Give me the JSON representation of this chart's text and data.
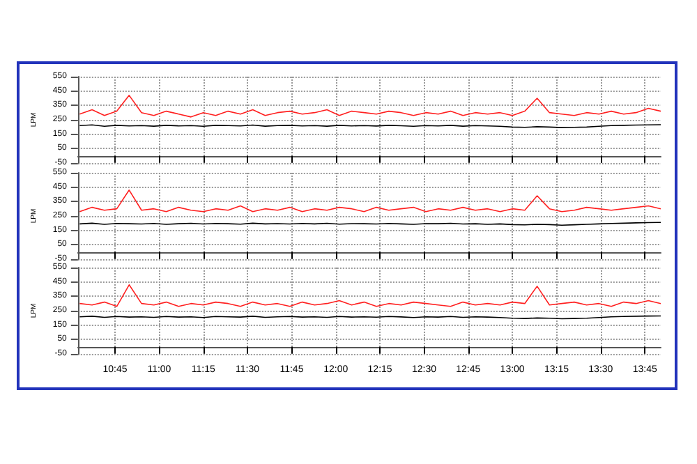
{
  "chart_data": [
    {
      "type": "line",
      "ylabel": "LPM",
      "x": [
        10.55,
        10.62,
        10.69,
        10.76,
        10.83,
        10.9,
        10.97,
        11.04,
        11.11,
        11.18,
        11.25,
        11.32,
        11.39,
        11.46,
        11.53,
        11.6,
        11.67,
        11.74,
        11.81,
        11.88,
        11.95,
        12.02,
        12.09,
        12.16,
        12.23,
        12.3,
        12.37,
        12.44,
        12.51,
        12.58,
        12.65,
        12.72,
        12.79,
        12.86,
        12.93,
        13.0,
        13.07,
        13.14,
        13.21,
        13.28,
        13.35,
        13.42,
        13.49,
        13.56,
        13.63,
        13.7,
        13.77,
        13.84
      ],
      "series": [
        {
          "color": "#ff2020",
          "values": [
            290,
            320,
            280,
            310,
            420,
            300,
            280,
            310,
            290,
            270,
            300,
            280,
            310,
            290,
            320,
            280,
            300,
            310,
            290,
            300,
            320,
            280,
            310,
            300,
            290,
            310,
            300,
            280,
            300,
            290,
            310,
            280,
            300,
            290,
            300,
            280,
            310,
            400,
            300,
            290,
            280,
            300,
            290,
            310,
            290,
            300,
            330,
            310
          ]
        },
        {
          "color": "#000000",
          "values": [
            210,
            215,
            205,
            212,
            208,
            210,
            206,
            212,
            208,
            210,
            205,
            212,
            210,
            208,
            214,
            206,
            210,
            212,
            208,
            210,
            206,
            212,
            208,
            210,
            207,
            212,
            209,
            205,
            210,
            208,
            212,
            206,
            210,
            208,
            205,
            200,
            198,
            202,
            200,
            196,
            198,
            200,
            205,
            210,
            212,
            214,
            215,
            216
          ]
        }
      ],
      "xlim": [
        10.54,
        13.84
      ],
      "xticks": [
        {
          "value": 10.75,
          "label": null
        },
        {
          "value": 11,
          "label": null
        },
        {
          "value": 11.25,
          "label": null
        },
        {
          "value": 11.5,
          "label": null
        },
        {
          "value": 11.75,
          "label": null
        },
        {
          "value": 12,
          "label": null
        },
        {
          "value": 12.25,
          "label": null
        },
        {
          "value": 12.5,
          "label": null
        },
        {
          "value": 12.75,
          "label": null
        },
        {
          "value": 13,
          "label": null
        },
        {
          "value": 13.25,
          "label": null
        },
        {
          "value": 13.5,
          "label": null
        },
        {
          "value": 13.75,
          "label": null
        }
      ],
      "ylim": [
        -50,
        550
      ],
      "yticks": [
        -50,
        50,
        150,
        250,
        350,
        450,
        550
      ],
      "grid": true,
      "tick_labels": "y",
      "marker": "none",
      "line_style": "solid"
    },
    {
      "type": "line",
      "ylabel": "LPM",
      "x": [
        10.55,
        10.62,
        10.69,
        10.76,
        10.83,
        10.9,
        10.97,
        11.04,
        11.11,
        11.18,
        11.25,
        11.32,
        11.39,
        11.46,
        11.53,
        11.6,
        11.67,
        11.74,
        11.81,
        11.88,
        11.95,
        12.02,
        12.09,
        12.16,
        12.23,
        12.3,
        12.37,
        12.44,
        12.51,
        12.58,
        12.65,
        12.72,
        12.79,
        12.86,
        12.93,
        13.0,
        13.07,
        13.14,
        13.21,
        13.28,
        13.35,
        13.42,
        13.49,
        13.56,
        13.63,
        13.7,
        13.77,
        13.84
      ],
      "series": [
        {
          "color": "#ff2020",
          "values": [
            280,
            310,
            290,
            300,
            430,
            290,
            300,
            280,
            310,
            290,
            280,
            300,
            290,
            320,
            280,
            300,
            290,
            310,
            280,
            300,
            290,
            310,
            300,
            280,
            310,
            290,
            300,
            310,
            280,
            300,
            290,
            310,
            290,
            300,
            280,
            300,
            290,
            390,
            300,
            280,
            290,
            310,
            300,
            290,
            300,
            310,
            320,
            300
          ]
        },
        {
          "color": "#000000",
          "values": [
            195,
            200,
            192,
            198,
            196,
            194,
            198,
            192,
            196,
            199,
            194,
            198,
            196,
            193,
            200,
            195,
            197,
            194,
            198,
            195,
            199,
            193,
            197,
            196,
            194,
            198,
            195,
            192,
            197,
            196,
            199,
            194,
            196,
            192,
            195,
            190,
            188,
            192,
            190,
            186,
            189,
            192,
            195,
            198,
            200,
            202,
            204,
            205
          ]
        }
      ],
      "xlim": [
        10.54,
        13.84
      ],
      "xticks": [
        {
          "value": 10.75,
          "label": null
        },
        {
          "value": 11,
          "label": null
        },
        {
          "value": 11.25,
          "label": null
        },
        {
          "value": 11.5,
          "label": null
        },
        {
          "value": 11.75,
          "label": null
        },
        {
          "value": 12,
          "label": null
        },
        {
          "value": 12.25,
          "label": null
        },
        {
          "value": 12.5,
          "label": null
        },
        {
          "value": 12.75,
          "label": null
        },
        {
          "value": 13,
          "label": null
        },
        {
          "value": 13.25,
          "label": null
        },
        {
          "value": 13.5,
          "label": null
        },
        {
          "value": 13.75,
          "label": null
        }
      ],
      "ylim": [
        -50,
        550
      ],
      "yticks": [
        -50,
        50,
        150,
        250,
        350,
        450,
        550
      ],
      "grid": true,
      "tick_labels": "y",
      "marker": "none",
      "line_style": "solid"
    },
    {
      "type": "line",
      "ylabel": "LPM",
      "x": [
        10.55,
        10.62,
        10.69,
        10.76,
        10.83,
        10.9,
        10.97,
        11.04,
        11.11,
        11.18,
        11.25,
        11.32,
        11.39,
        11.46,
        11.53,
        11.6,
        11.67,
        11.74,
        11.81,
        11.88,
        11.95,
        12.02,
        12.09,
        12.16,
        12.23,
        12.3,
        12.37,
        12.44,
        12.51,
        12.58,
        12.65,
        12.72,
        12.79,
        12.86,
        12.93,
        13.0,
        13.07,
        13.14,
        13.21,
        13.28,
        13.35,
        13.42,
        13.49,
        13.56,
        13.63,
        13.7,
        13.77,
        13.84
      ],
      "series": [
        {
          "color": "#ff2020",
          "values": [
            300,
            290,
            310,
            280,
            430,
            300,
            290,
            310,
            280,
            300,
            290,
            310,
            300,
            280,
            310,
            290,
            300,
            280,
            310,
            290,
            300,
            320,
            290,
            310,
            280,
            300,
            290,
            310,
            300,
            290,
            280,
            310,
            290,
            300,
            290,
            310,
            300,
            420,
            290,
            300,
            310,
            290,
            300,
            280,
            310,
            300,
            320,
            300
          ]
        },
        {
          "color": "#000000",
          "values": [
            208,
            212,
            204,
            210,
            206,
            208,
            204,
            210,
            206,
            208,
            203,
            210,
            208,
            206,
            212,
            204,
            208,
            210,
            206,
            208,
            204,
            210,
            206,
            208,
            205,
            210,
            207,
            203,
            208,
            206,
            210,
            204,
            208,
            206,
            203,
            198,
            196,
            200,
            198,
            194,
            196,
            198,
            203,
            208,
            210,
            212,
            213,
            214
          ]
        }
      ],
      "xlim": [
        10.54,
        13.84
      ],
      "xticks": [
        {
          "value": 10.75,
          "label": "10:45"
        },
        {
          "value": 11,
          "label": "11:00"
        },
        {
          "value": 11.25,
          "label": "11:15"
        },
        {
          "value": 11.5,
          "label": "11:30"
        },
        {
          "value": 11.75,
          "label": "11:45"
        },
        {
          "value": 12,
          "label": "12:00"
        },
        {
          "value": 12.25,
          "label": "12:15"
        },
        {
          "value": 12.5,
          "label": "12:30"
        },
        {
          "value": 12.75,
          "label": "12:45"
        },
        {
          "value": 13,
          "label": "13:00"
        },
        {
          "value": 13.25,
          "label": "13:15"
        },
        {
          "value": 13.5,
          "label": "13:30"
        },
        {
          "value": 13.75,
          "label": "13:45"
        }
      ],
      "ylim": [
        -50,
        550
      ],
      "yticks": [
        -50,
        50,
        150,
        250,
        350,
        450,
        550
      ],
      "grid": true,
      "marker": "none",
      "line_style": "solid"
    }
  ]
}
